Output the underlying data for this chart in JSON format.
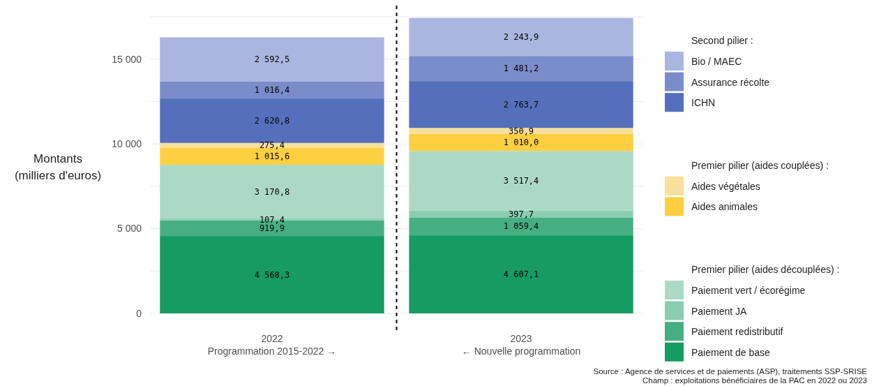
{
  "chart_data": {
    "type": "bar",
    "stacked": true,
    "ylabel": "Montants\n(milliers d'euros)",
    "categories": [
      "2022\nProgrammation 2015-2022 →",
      "2023\n← Nouvelle programmation"
    ],
    "ylim": [
      0,
      17500
    ],
    "yticks": [
      {
        "value": 0,
        "label": "0"
      },
      {
        "value": 2500,
        "label": null
      },
      {
        "value": 5000,
        "label": "5 000"
      },
      {
        "value": 7500,
        "label": null
      },
      {
        "value": 10000,
        "label": "10 000"
      },
      {
        "value": 12500,
        "label": null
      },
      {
        "value": 15000,
        "label": "15 000"
      },
      {
        "value": 17500,
        "label": null
      }
    ],
    "grid": "y",
    "legend": "right",
    "legend_title": [
      "Premier pilier (aides découplées) :",
      "Premier pilier (aides couplées) :",
      "Second pilier :"
    ],
    "series": [
      {
        "name": "Paiement de base",
        "color": "#169b62",
        "values": [
          4568.3,
          4607.1
        ],
        "value_labels": [
          "4 568,3",
          "4 607,1"
        ]
      },
      {
        "name": "Paiement redistributif",
        "color": "#46af82",
        "values": [
          919.9,
          1059.4
        ],
        "value_labels": [
          "919,9",
          "1 059,4"
        ]
      },
      {
        "name": "Paiement JA",
        "color": "#8bcdb1",
        "values": [
          107.4,
          397.7
        ],
        "value_labels": [
          "107,4",
          "397,7"
        ]
      },
      {
        "name": "Paiement vert / écorégime",
        "color": "#acd9c6",
        "values": [
          3170.8,
          3517.4
        ],
        "value_labels": [
          "3 170,8",
          "3 517,4"
        ]
      },
      {
        "name": "Aides animales",
        "color": "#fdcf41",
        "values": [
          1015.6,
          1010.0
        ],
        "value_labels": [
          "1 015,6",
          "1 010,0"
        ]
      },
      {
        "name": "Aides végétales",
        "color": "#f7e09c",
        "values": [
          275.4,
          350.9
        ],
        "value_labels": [
          "275,4",
          "350,9"
        ]
      },
      {
        "name": "ICHN",
        "color": "#566fbc",
        "values": [
          2620.8,
          2763.7
        ],
        "value_labels": [
          "2 620,8",
          "2 763,7"
        ]
      },
      {
        "name": "Assurance récolte",
        "color": "#7a8cc9",
        "values": [
          1016.4,
          1481.2
        ],
        "value_labels": [
          "1 016,4",
          "1 481,2"
        ]
      },
      {
        "name": "Bio / MAEC",
        "color": "#aab6e0",
        "values": [
          2592.5,
          2243.9
        ],
        "value_labels": [
          "2 592,5",
          "2 243,9"
        ]
      }
    ],
    "annotations": [
      "Source : Agence de services et de paiements (ASP), traitements SSP-SRISE",
      "Champ : exploitations bénéficiaires de la PAC en 2022 ou 2023"
    ]
  }
}
